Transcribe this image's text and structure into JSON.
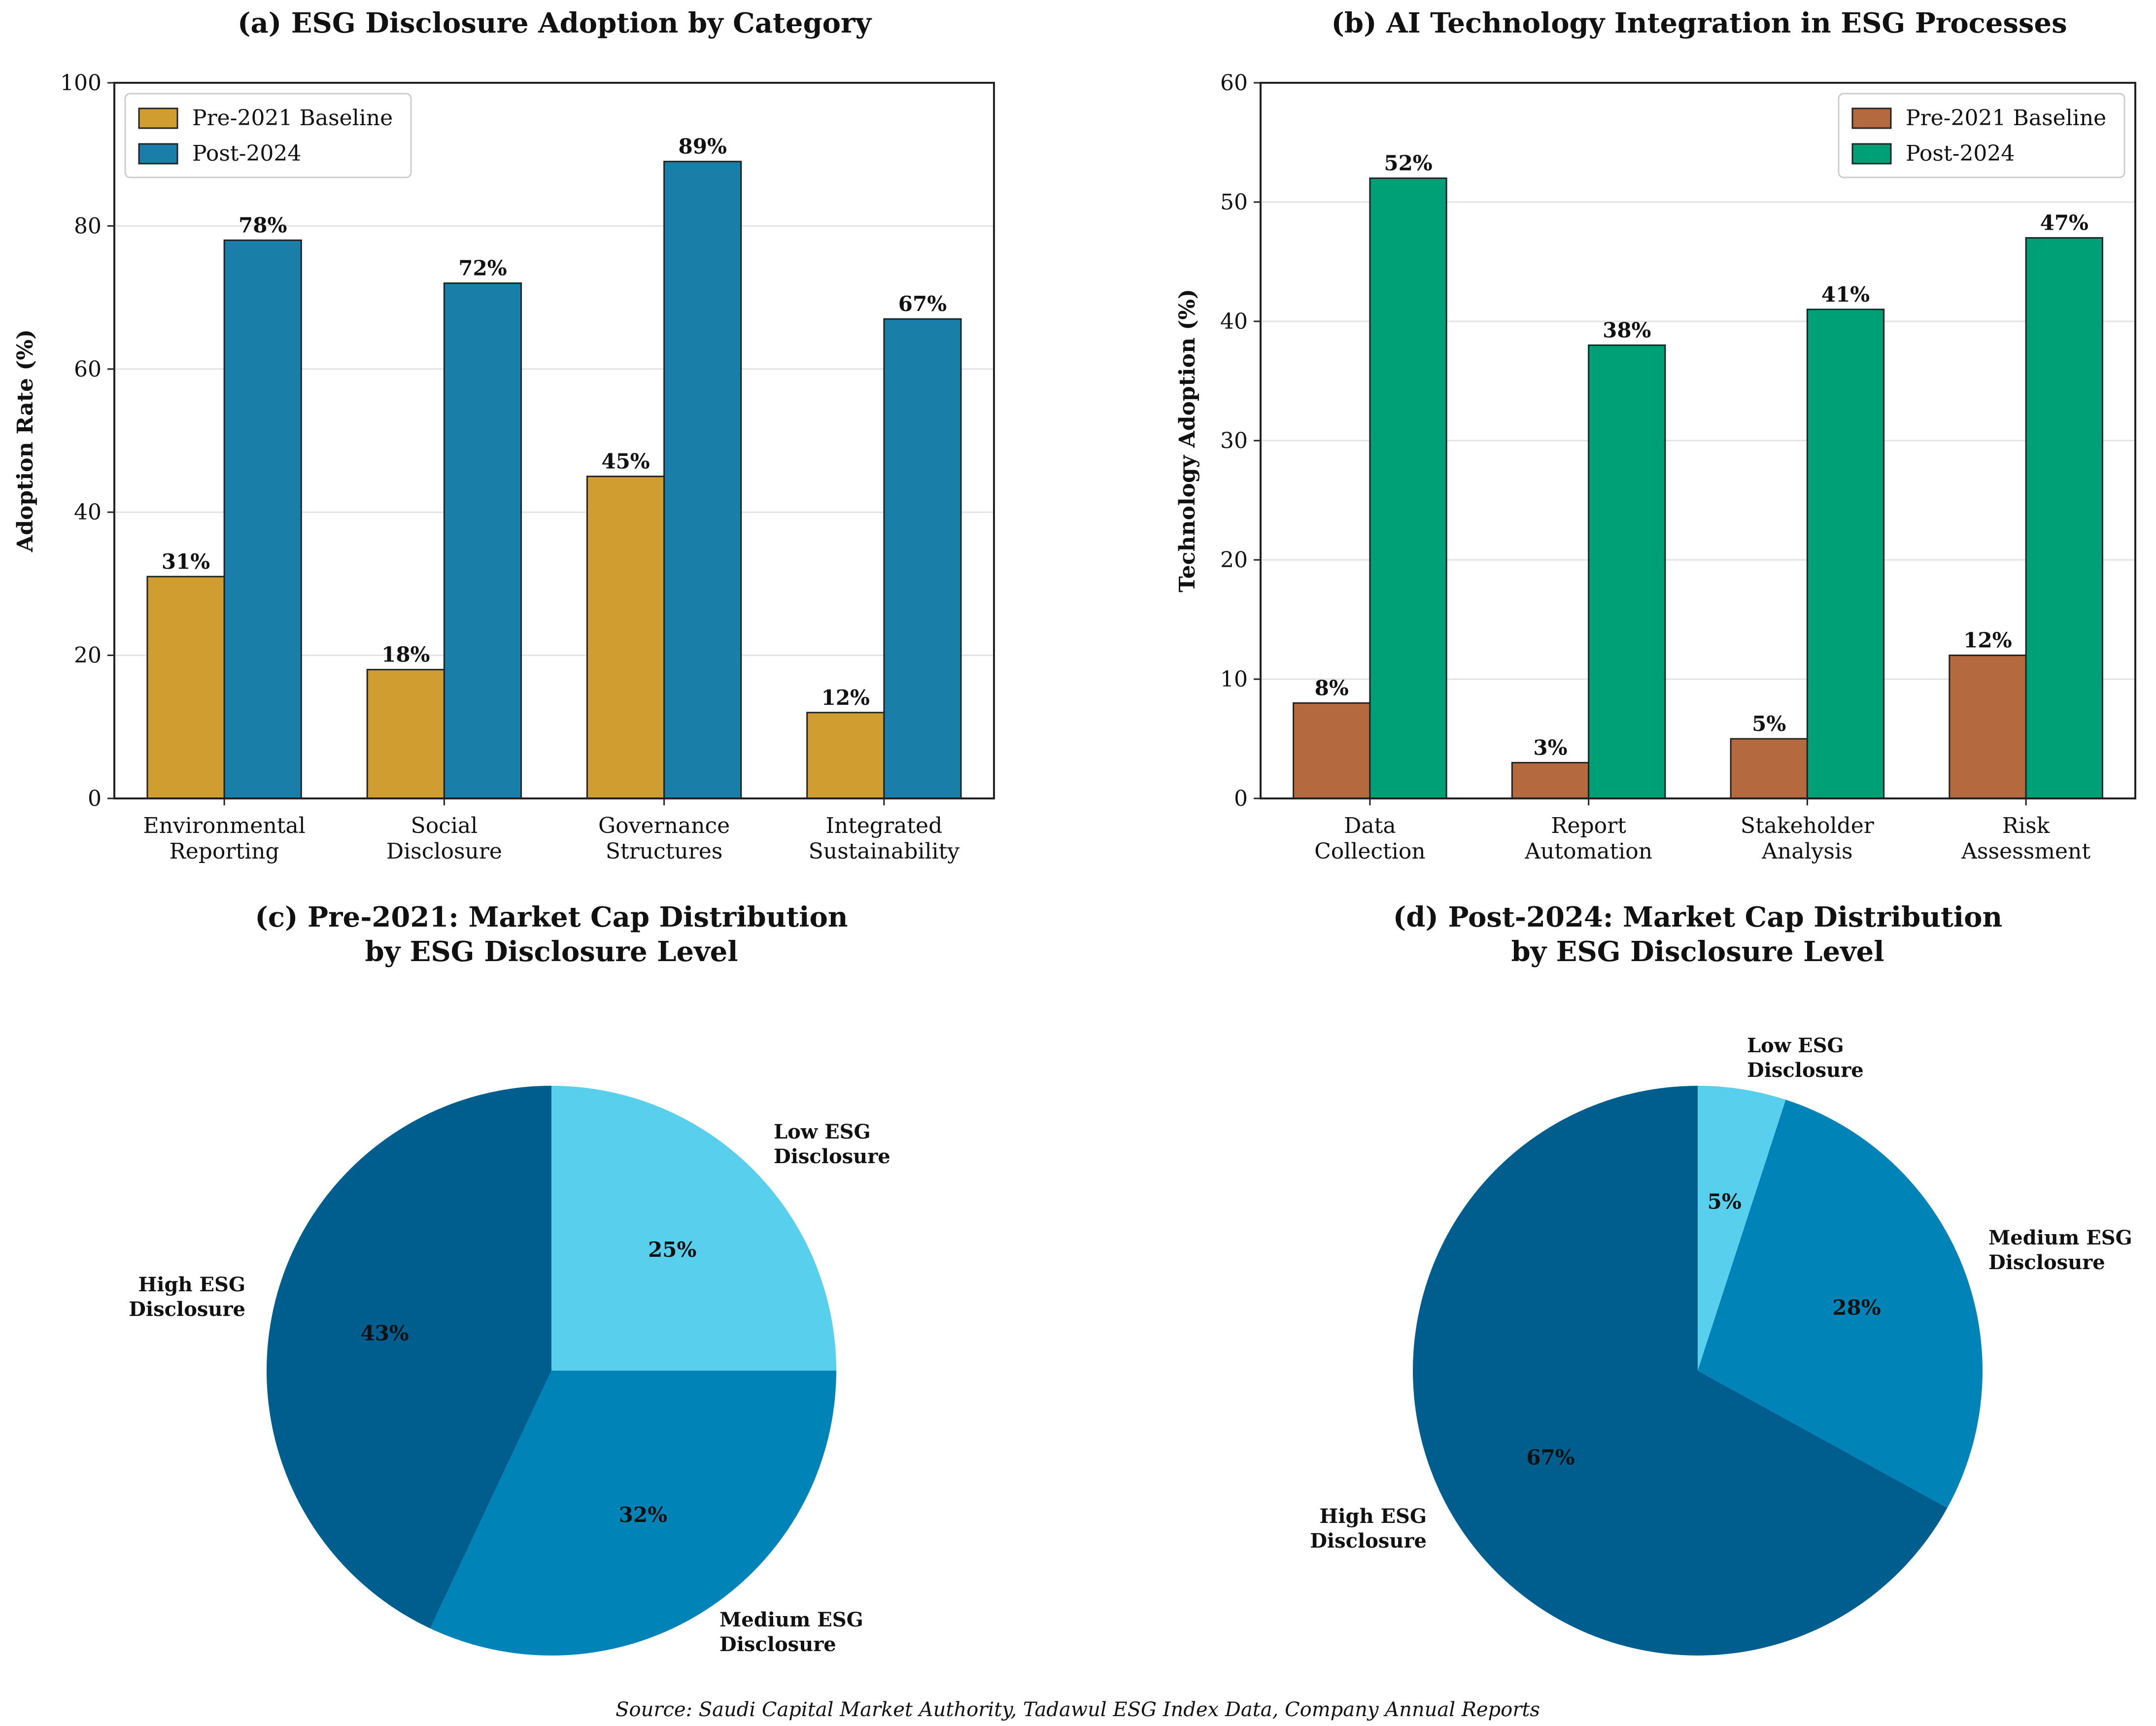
{
  "source": "Source: Saudi Capital Market Authority, Tadawul ESG Index Data, Company Annual Reports",
  "colors": {
    "pre_a": "#D09E30",
    "post_a": "#1A7FA8",
    "pre_b": "#B46A3E",
    "post_b": "#00A077",
    "pie_low": "#58CFEC",
    "pie_medium": "#0084B8",
    "pie_high": "#005E8E"
  },
  "chart_data": [
    {
      "type": "bar",
      "title": "(a) ESG Disclosure Adoption by Category",
      "ylabel": "Adoption Rate (%)",
      "xlabel": "",
      "ylim": [
        0,
        100
      ],
      "yticks": [
        0,
        20,
        40,
        60,
        80,
        100
      ],
      "grid": true,
      "legend": "top-left",
      "categories": [
        "Environmental\nReporting",
        "Social\nDisclosure",
        "Governance\nStructures",
        "Integrated\nSustainability"
      ],
      "series": [
        {
          "name": "Pre-2021 Baseline",
          "values": [
            31,
            18,
            45,
            12
          ],
          "labels": [
            "31%",
            "18%",
            "45%",
            "12%"
          ]
        },
        {
          "name": "Post-2024",
          "values": [
            78,
            72,
            89,
            67
          ],
          "labels": [
            "78%",
            "72%",
            "89%",
            "67%"
          ]
        }
      ]
    },
    {
      "type": "bar",
      "title": "(b) AI Technology Integration in ESG Processes",
      "ylabel": "Technology Adoption (%)",
      "xlabel": "",
      "ylim": [
        0,
        60
      ],
      "yticks": [
        0,
        10,
        20,
        30,
        40,
        50,
        60
      ],
      "grid": true,
      "legend": "top-right",
      "categories": [
        "Data\nCollection",
        "Report\nAutomation",
        "Stakeholder\nAnalysis",
        "Risk\nAssessment"
      ],
      "series": [
        {
          "name": "Pre-2021 Baseline",
          "values": [
            8,
            3,
            5,
            12
          ],
          "labels": [
            "8%",
            "3%",
            "5%",
            "12%"
          ]
        },
        {
          "name": "Post-2024",
          "values": [
            52,
            38,
            41,
            47
          ],
          "labels": [
            "52%",
            "38%",
            "41%",
            "47%"
          ]
        }
      ]
    },
    {
      "type": "pie",
      "title": "(c) Pre-2021: Market Cap Distribution\nby ESG Disclosure Level",
      "slices": [
        {
          "label": "Low ESG\nDisclosure",
          "value": 25,
          "pct": "25%"
        },
        {
          "label": "Medium ESG\nDisclosure",
          "value": 32,
          "pct": "32%"
        },
        {
          "label": "High ESG\nDisclosure",
          "value": 43,
          "pct": "43%"
        }
      ]
    },
    {
      "type": "pie",
      "title": "(d) Post-2024: Market Cap Distribution\nby ESG Disclosure Level",
      "slices": [
        {
          "label": "Low ESG\nDisclosure",
          "value": 5,
          "pct": "5%"
        },
        {
          "label": "Medium ESG\nDisclosure",
          "value": 28,
          "pct": "28%"
        },
        {
          "label": "High ESG\nDisclosure",
          "value": 67,
          "pct": "67%"
        }
      ]
    }
  ]
}
